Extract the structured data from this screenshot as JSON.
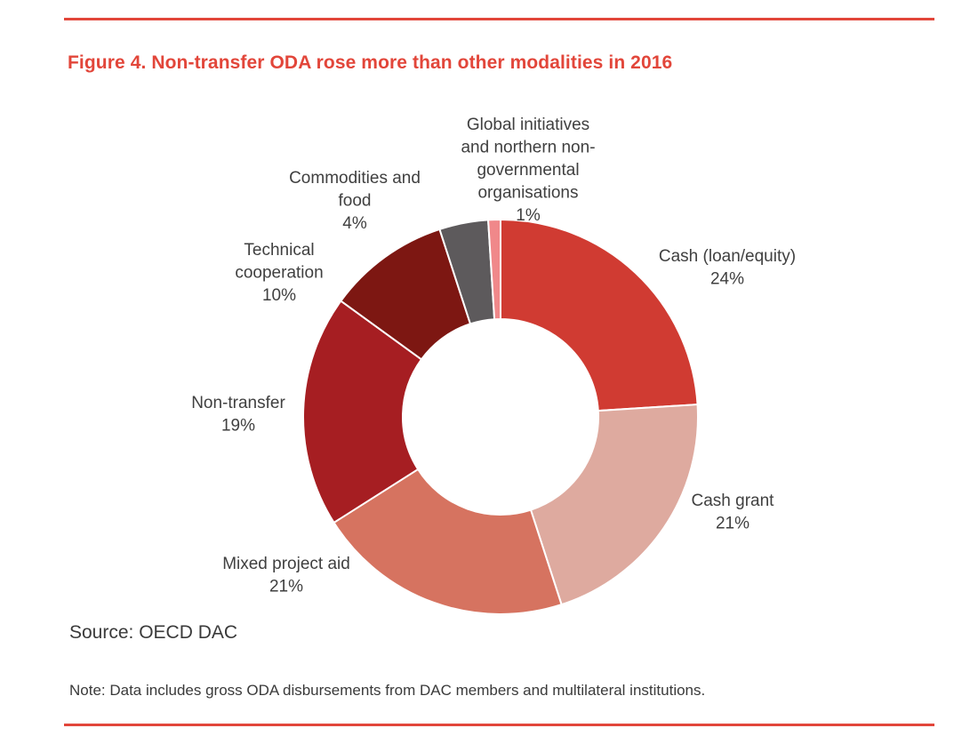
{
  "figure": {
    "title": "Figure 4. Non-transfer ODA rose more than other modalities in 2016",
    "source": "Source: OECD DAC",
    "note": "Note: Data includes gross ODA disbursements from DAC members and multilateral institutions."
  },
  "chart_data": {
    "type": "pie",
    "donut": true,
    "legend": "none",
    "slices": [
      {
        "label": [
          "Cash (loan/equity)"
        ],
        "percent_label": "24%",
        "value": 24,
        "color": "#d03b32"
      },
      {
        "label": [
          "Cash grant"
        ],
        "percent_label": "21%",
        "value": 21,
        "color": "#deaa9f"
      },
      {
        "label": [
          "Mixed project aid"
        ],
        "percent_label": "21%",
        "value": 21,
        "color": "#d67360"
      },
      {
        "label": [
          "Non-transfer"
        ],
        "percent_label": "19%",
        "value": 19,
        "color": "#a61e22"
      },
      {
        "label": [
          "Technical",
          "cooperation"
        ],
        "percent_label": "10%",
        "value": 10,
        "color": "#7d1712"
      },
      {
        "label": [
          "Commodities and",
          "food"
        ],
        "percent_label": "4%",
        "value": 4,
        "color": "#5d5a5c"
      },
      {
        "label": [
          "Global initiatives",
          "and northern non-",
          "governmental",
          "organisations"
        ],
        "percent_label": "1%",
        "value": 1,
        "color": "#f0888a"
      }
    ]
  }
}
